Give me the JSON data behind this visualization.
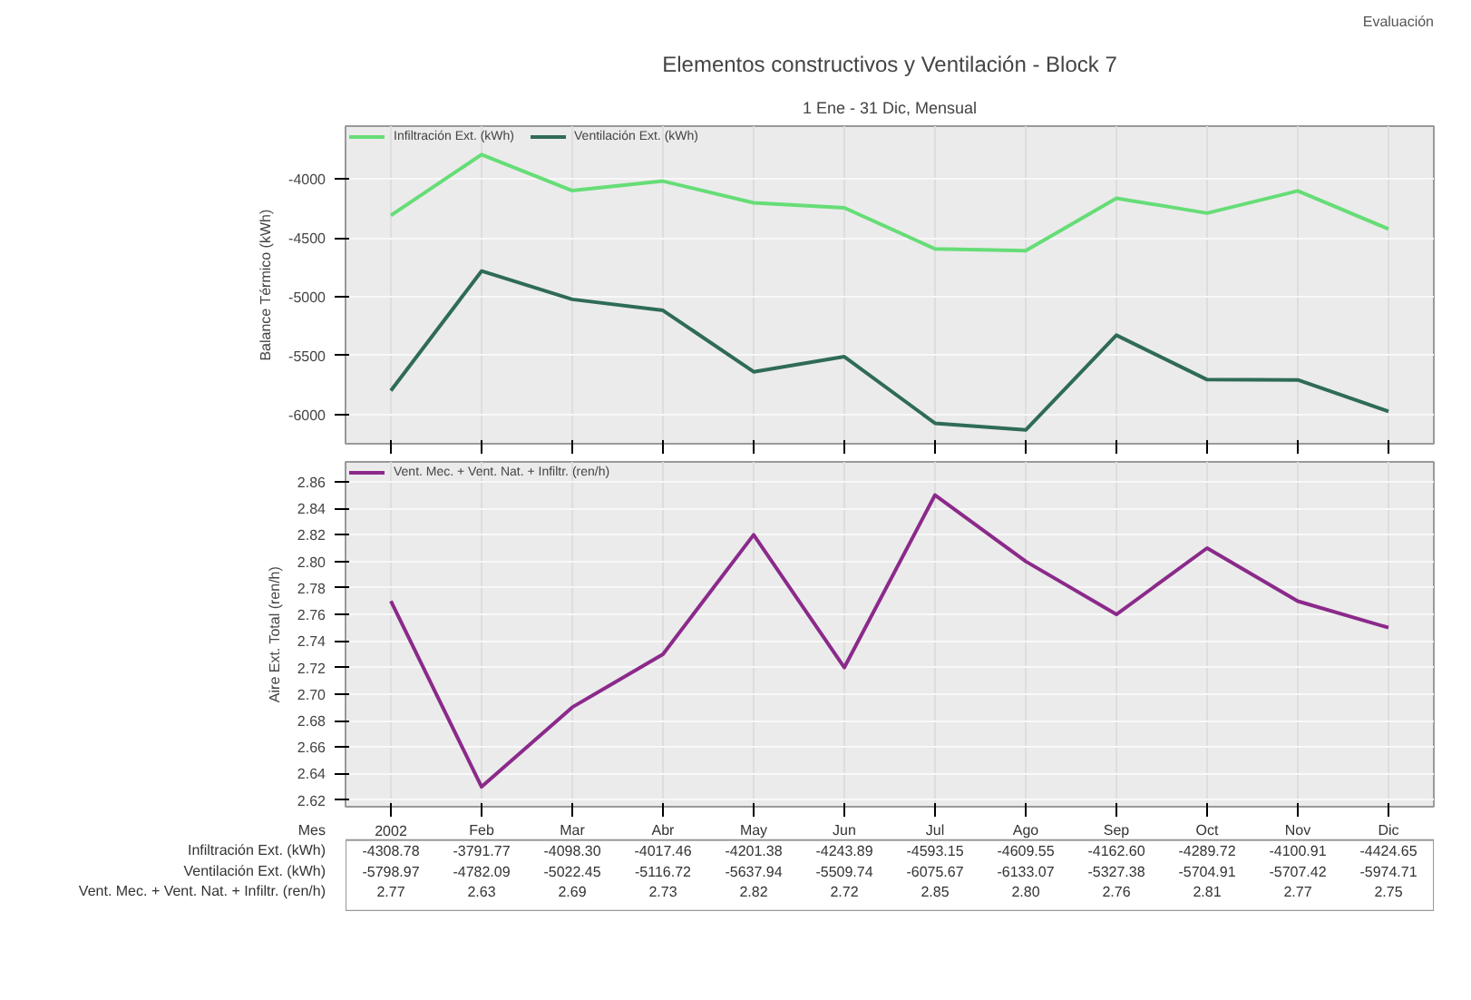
{
  "chart_data": [
    {
      "type": "line",
      "title": "Elementos constructivos y Ventilación - Block 7",
      "subtitle": "1 Ene - 31 Dic, Mensual",
      "annotations": [
        "Evaluación"
      ],
      "ylabel": "Balance Térmico (kWh)",
      "categories": [
        null,
        null,
        null,
        null,
        null,
        null,
        null,
        null,
        null,
        null,
        null,
        null
      ],
      "series": [
        {
          "name": "Infiltración Ext. (kWh)",
          "color": "#66dd77",
          "values": [
            -4308.78,
            -3791.77,
            -4098.3,
            -4017.46,
            -4201.38,
            -4243.89,
            -4593.15,
            -4609.55,
            -4162.6,
            -4289.72,
            -4100.91,
            -4424.65
          ]
        },
        {
          "name": "Ventilación Ext. (kWh)",
          "color": "#2f6b57",
          "values": [
            -5798.97,
            -4782.09,
            -5022.45,
            -5116.72,
            -5637.94,
            -5509.74,
            -6075.67,
            -6133.07,
            -5327.38,
            -5704.91,
            -5707.42,
            -5974.71
          ]
        }
      ],
      "ylim": [
        -6250,
        -3550
      ],
      "yticks": [
        -4000,
        -4500,
        -5000,
        -5500,
        -6000
      ],
      "grid": true,
      "legend": "top left",
      "tick_labels": "y"
    },
    {
      "type": "line",
      "ylabel": "Aire Ext. Total (ren/h)",
      "tick_labels": "y",
      "categories": [
        null,
        null,
        null,
        null,
        null,
        null,
        null,
        null,
        null,
        null,
        null,
        null
      ],
      "series": [
        {
          "name": "Vent. Mec. + Vent. Nat. + Infiltr. (ren/h)",
          "color": "#8b2a8b",
          "values": [
            2.77,
            2.63,
            2.69,
            2.73,
            2.82,
            2.72,
            2.85,
            2.8,
            2.76,
            2.81,
            2.77,
            2.75
          ]
        }
      ],
      "ylim": [
        2.615,
        2.875
      ],
      "yticks": [
        2.62,
        2.64,
        2.66,
        2.68,
        {
          "value": 2.7,
          "label": "2.70"
        },
        2.72,
        2.74,
        2.76,
        2.78,
        {
          "value": 2.8,
          "label": "2.80"
        },
        2.82,
        2.84,
        2.86
      ],
      "grid": true,
      "legend": "top left"
    },
    {
      "type": "other",
      "xlabel": "Mes",
      "categories": [
        "2002",
        "Feb",
        "Mar",
        "Abr",
        "May",
        "Jun",
        "Jul",
        "Ago",
        "Sep",
        "Oct",
        "Nov",
        "Dic"
      ],
      "series": [
        {
          "name": "Infiltración Ext. (kWh)",
          "values": [
            -4308.78,
            -3791.77,
            -4098.3,
            -4017.46,
            -4201.38,
            -4243.89,
            -4593.15,
            -4609.55,
            -4162.6,
            -4289.72,
            -4100.91,
            -4424.65
          ],
          "value_labels": [
            "-4308.78",
            "-3791.77",
            "-4098.30",
            "-4017.46",
            "-4201.38",
            "-4243.89",
            "-4593.15",
            "-4609.55",
            "-4162.60",
            "-4289.72",
            "-4100.91",
            "-4424.65"
          ]
        },
        {
          "name": "Ventilación Ext. (kWh)",
          "values": [
            -5798.97,
            -4782.09,
            -5022.45,
            -5116.72,
            -5637.94,
            -5509.74,
            -6075.67,
            -6133.07,
            -5327.38,
            -5704.91,
            -5707.42,
            -5974.71
          ],
          "value_labels": [
            "-5798.97",
            "-4782.09",
            "-5022.45",
            "-5116.72",
            "-5637.94",
            "-5509.74",
            "-6075.67",
            "-6133.07",
            "-5327.38",
            "-5704.91",
            "-5707.42",
            "-5974.71"
          ]
        },
        {
          "name": "Vent. Mec. + Vent. Nat. + Infiltr. (ren/h)",
          "values": [
            2.77,
            2.63,
            2.69,
            2.73,
            2.82,
            2.72,
            2.85,
            2.8,
            2.76,
            2.81,
            2.77,
            2.75
          ],
          "value_labels": [
            "2.77",
            "2.63",
            "2.69",
            "2.73",
            "2.82",
            "2.72",
            "2.85",
            "2.80",
            "2.76",
            "2.81",
            "2.77",
            "2.75"
          ]
        }
      ]
    }
  ]
}
